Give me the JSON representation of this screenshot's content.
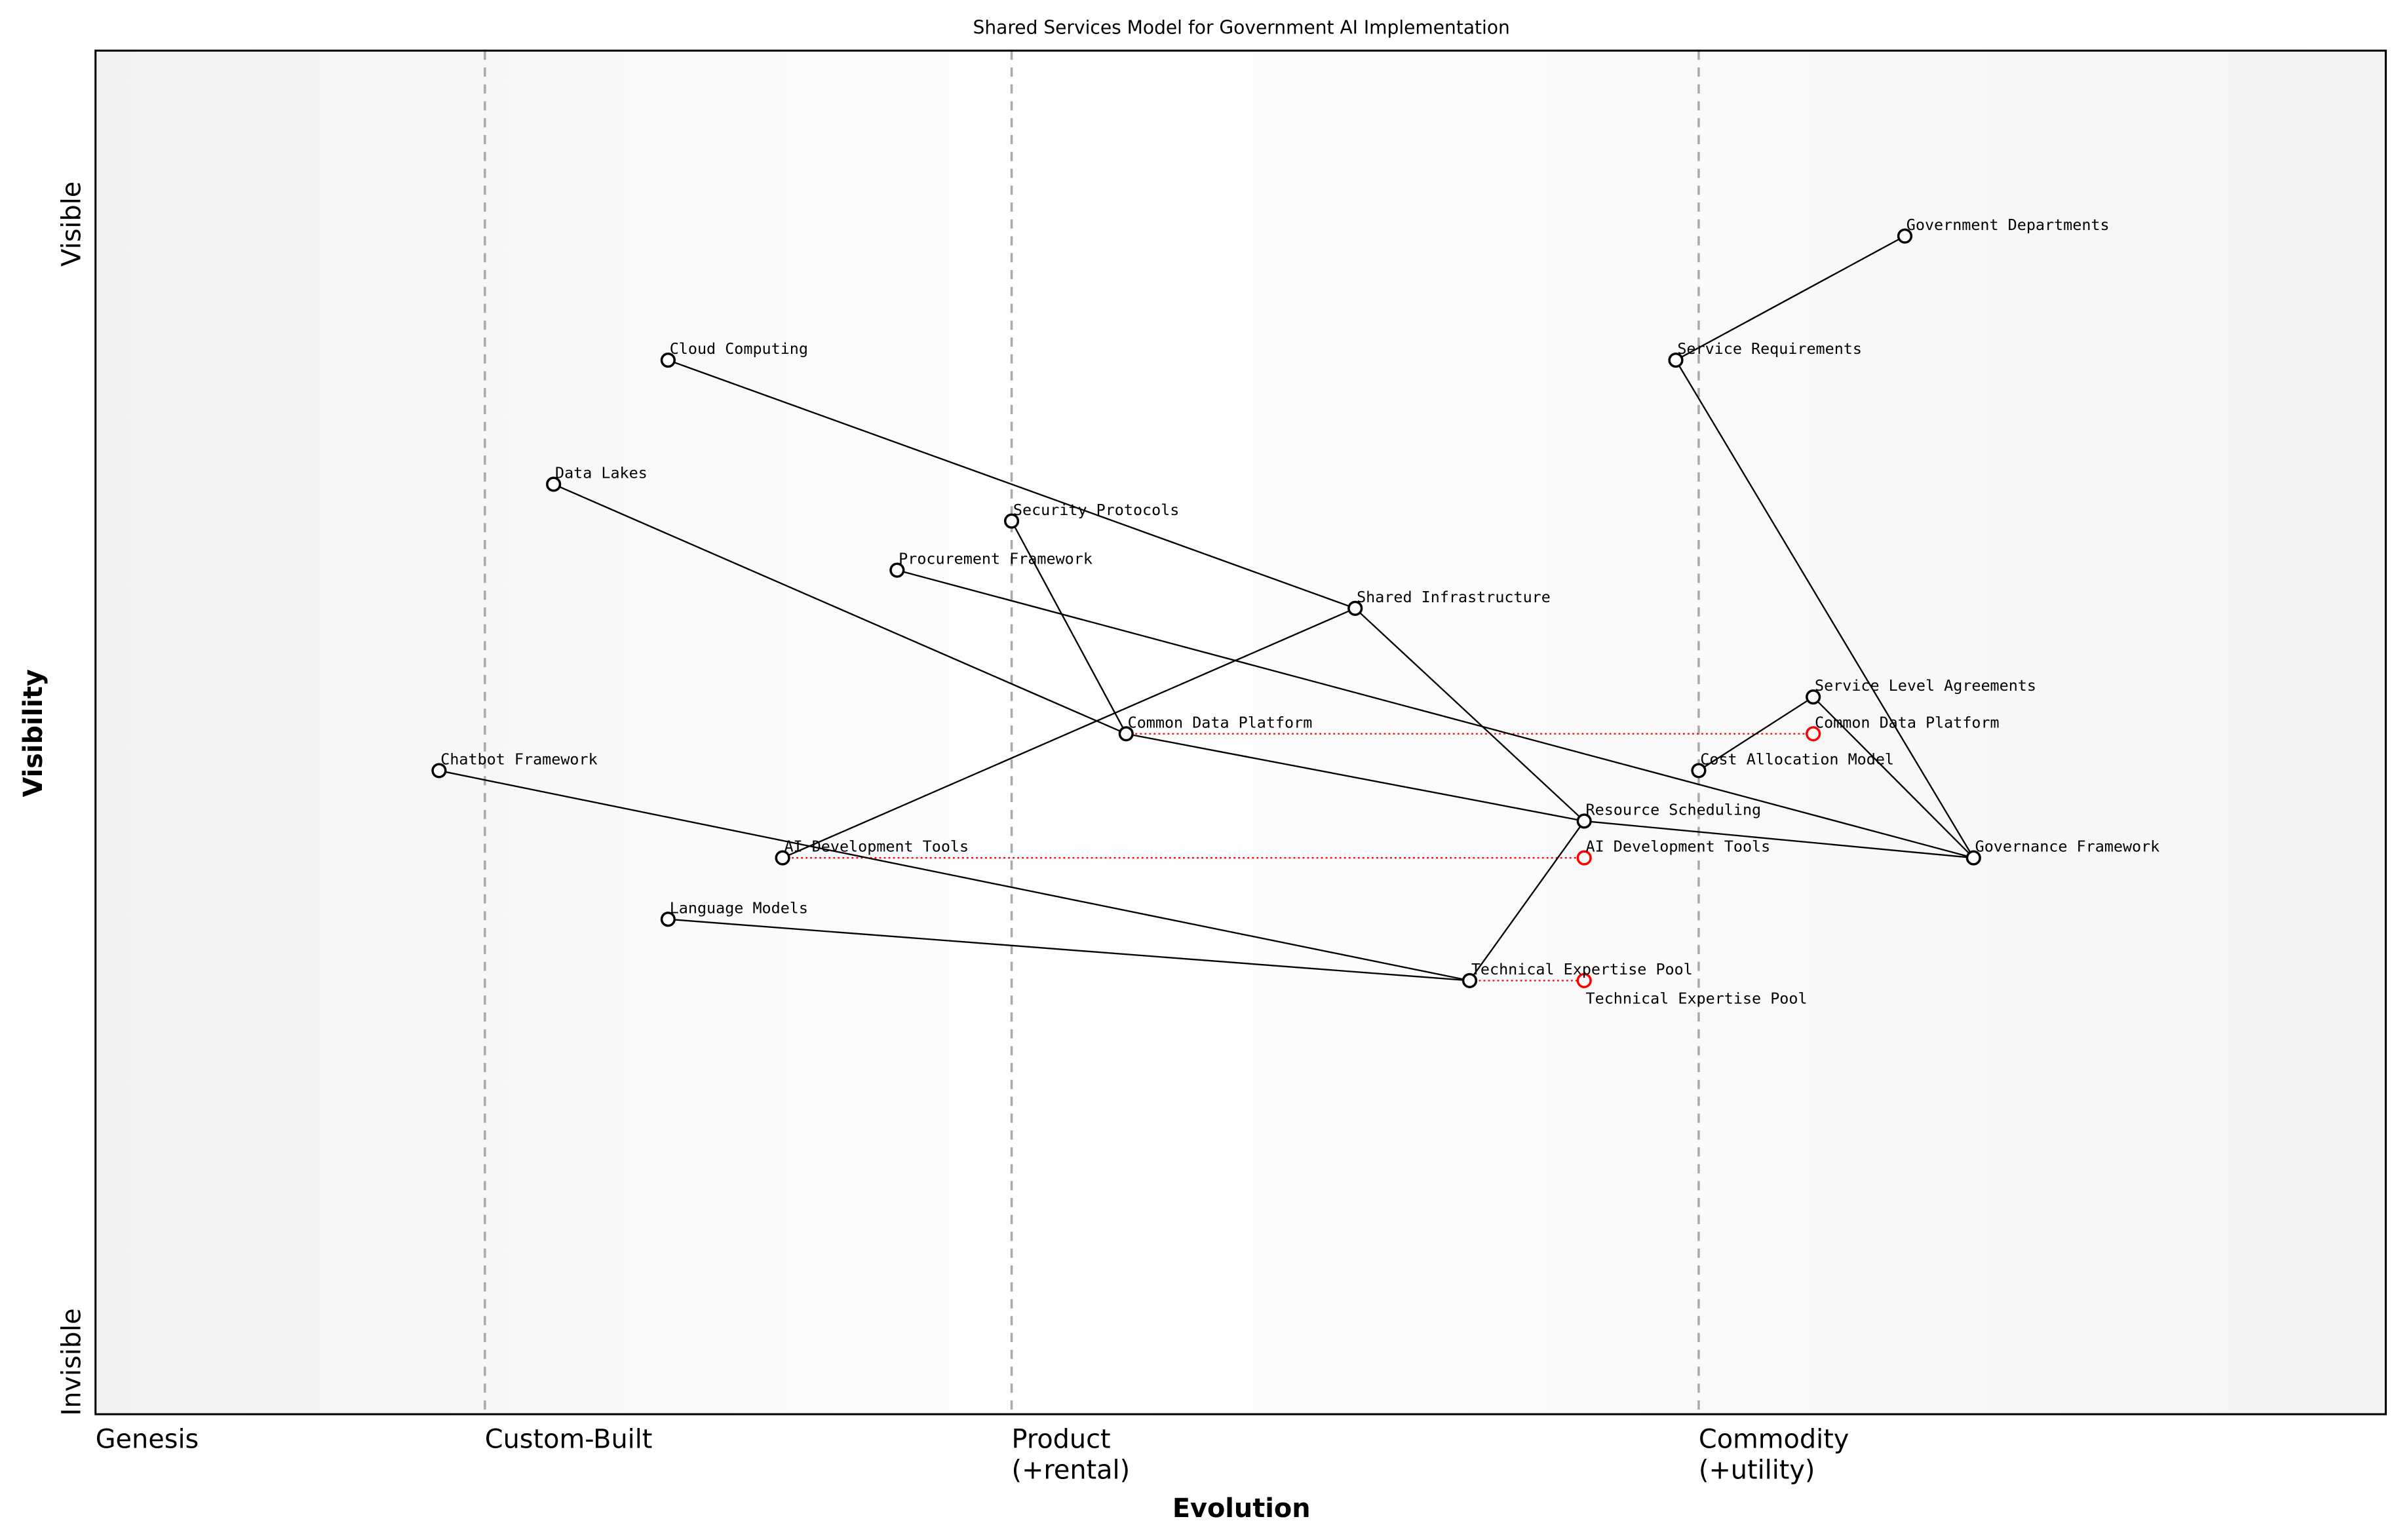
{
  "title": "Shared Services Model for Government AI Implementation",
  "chart_data": {
    "type": "wardley-map",
    "xlabel": "Evolution",
    "ylabel": "Visibility",
    "xlim": [
      0,
      1
    ],
    "ylim": [
      0,
      1
    ],
    "x_stages": [
      {
        "label": "Genesis",
        "at": 0.0
      },
      {
        "label": "Custom-Built",
        "at": 0.17
      },
      {
        "label": "Product\n(+rental)",
        "at": 0.4
      },
      {
        "label": "Commodity\n(+utility)",
        "at": 0.7
      }
    ],
    "y_labels": {
      "top": "Visible",
      "bottom": "Invisible"
    },
    "stage_divider_color": "#aaaaaa",
    "components": [
      {
        "name": "Government Departments",
        "evolution": 0.79,
        "visibility": 0.864
      },
      {
        "name": "Service Requirements",
        "evolution": 0.69,
        "visibility": 0.773
      },
      {
        "name": "Cloud Computing",
        "evolution": 0.25,
        "visibility": 0.773
      },
      {
        "name": "Data Lakes",
        "evolution": 0.2,
        "visibility": 0.682
      },
      {
        "name": "Security Protocols",
        "evolution": 0.4,
        "visibility": 0.655
      },
      {
        "name": "Procurement Framework",
        "evolution": 0.35,
        "visibility": 0.619
      },
      {
        "name": "Shared Infrastructure",
        "evolution": 0.55,
        "visibility": 0.591
      },
      {
        "name": "Service Level Agreements",
        "evolution": 0.75,
        "visibility": 0.526
      },
      {
        "name": "Common Data Platform",
        "evolution": 0.45,
        "visibility": 0.499
      },
      {
        "name": "Cost Allocation Model",
        "evolution": 0.7,
        "visibility": 0.472
      },
      {
        "name": "Chatbot Framework",
        "evolution": 0.15,
        "visibility": 0.472
      },
      {
        "name": "Resource Scheduling",
        "evolution": 0.65,
        "visibility": 0.435
      },
      {
        "name": "AI Development Tools",
        "evolution": 0.3,
        "visibility": 0.408
      },
      {
        "name": "Governance Framework",
        "evolution": 0.82,
        "visibility": 0.408
      },
      {
        "name": "Language Models",
        "evolution": 0.25,
        "visibility": 0.363
      },
      {
        "name": "Technical Expertise Pool",
        "evolution": 0.6,
        "visibility": 0.318
      }
    ],
    "links": [
      [
        "Government Departments",
        "Service Requirements"
      ],
      [
        "Service Requirements",
        "Governance Framework"
      ],
      [
        "Cloud Computing",
        "Shared Infrastructure"
      ],
      [
        "Data Lakes",
        "Common Data Platform"
      ],
      [
        "Security Protocols",
        "Common Data Platform"
      ],
      [
        "Procurement Framework",
        "Governance Framework"
      ],
      [
        "Shared Infrastructure",
        "AI Development Tools"
      ],
      [
        "Shared Infrastructure",
        "Resource Scheduling"
      ],
      [
        "Common Data Platform",
        "Resource Scheduling"
      ],
      [
        "Resource Scheduling",
        "Governance Framework"
      ],
      [
        "Resource Scheduling",
        "Technical Expertise Pool"
      ],
      [
        "Service Level Agreements",
        "Cost Allocation Model"
      ],
      [
        "Service Level Agreements",
        "Governance Framework"
      ],
      [
        "Chatbot Framework",
        "Technical Expertise Pool"
      ],
      [
        "Language Models",
        "Technical Expertise Pool"
      ]
    ],
    "evolutions": [
      {
        "name": "Common Data Platform",
        "to": 0.75
      },
      {
        "name": "AI Development Tools",
        "to": 0.65
      },
      {
        "name": "Technical Expertise Pool",
        "to": 0.65
      }
    ],
    "evolution_color": "#ff0000",
    "link_color": "#000000"
  }
}
